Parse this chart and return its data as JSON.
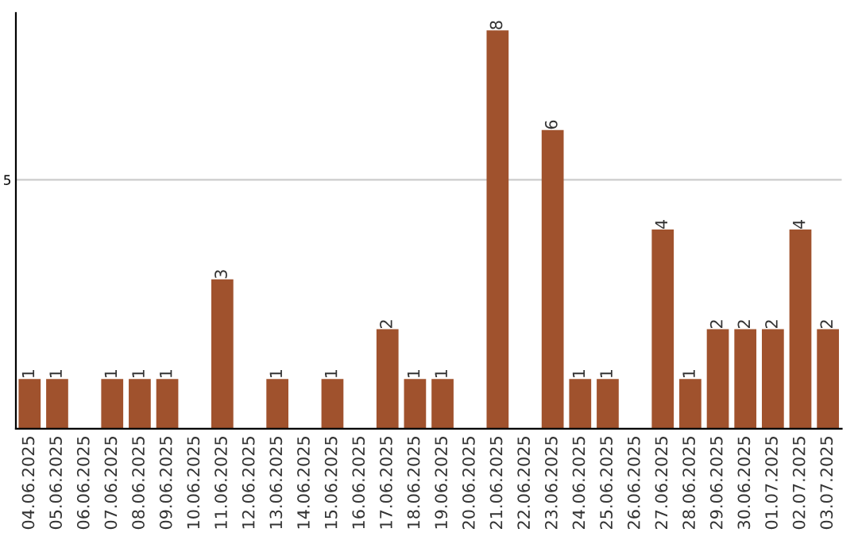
{
  "chart_data": {
    "type": "bar",
    "categories": [
      "04.06.2025",
      "05.06.2025",
      "06.06.2025",
      "07.06.2025",
      "08.06.2025",
      "09.06.2025",
      "10.06.2025",
      "11.06.2025",
      "12.06.2025",
      "13.06.2025",
      "14.06.2025",
      "15.06.2025",
      "16.06.2025",
      "17.06.2025",
      "18.06.2025",
      "19.06.2025",
      "20.06.2025",
      "21.06.2025",
      "22.06.2025",
      "23.06.2025",
      "24.06.2025",
      "25.06.2025",
      "26.06.2025",
      "27.06.2025",
      "28.06.2025",
      "29.06.2025",
      "30.06.2025",
      "01.07.2025",
      "02.07.2025",
      "03.07.2025"
    ],
    "values": [
      1,
      1,
      0,
      1,
      1,
      1,
      0,
      3,
      0,
      1,
      0,
      1,
      0,
      2,
      1,
      1,
      0,
      8,
      0,
      6,
      1,
      1,
      0,
      4,
      1,
      2,
      2,
      2,
      4,
      2
    ],
    "value_labels": [
      "1",
      "1",
      null,
      "1",
      "1",
      "1",
      null,
      "3",
      null,
      "1",
      null,
      "1",
      null,
      "2",
      "1",
      "1",
      null,
      "8",
      null,
      "6",
      "1",
      "1",
      null,
      "4",
      "1",
      "2",
      "2",
      "2",
      "4",
      "2"
    ],
    "color": "#a0522d",
    "ylim": [
      0,
      8.35
    ],
    "yticks": [
      5
    ],
    "grid": "y"
  }
}
